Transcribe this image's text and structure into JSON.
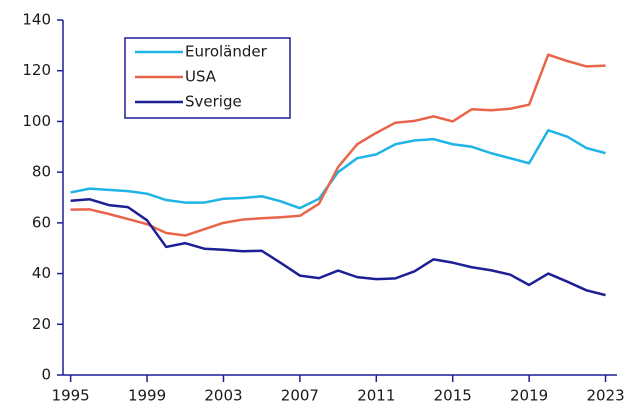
{
  "chart_data": {
    "type": "line",
    "x": [
      1995,
      1996,
      1997,
      1998,
      1999,
      2000,
      2001,
      2002,
      2003,
      2004,
      2005,
      2006,
      2007,
      2008,
      2009,
      2010,
      2011,
      2012,
      2013,
      2014,
      2015,
      2016,
      2017,
      2018,
      2019,
      2020,
      2021,
      2022,
      2023
    ],
    "series": [
      {
        "name": "Euroländer",
        "color": "#1eb4e6",
        "values": [
          72,
          73.5,
          73,
          72.5,
          71.5,
          69,
          68,
          68,
          69.5,
          69.8,
          70.5,
          68.5,
          65.8,
          69.5,
          80,
          85.5,
          87,
          91,
          92.5,
          93,
          91,
          90,
          87.5,
          85.5,
          83.5,
          96.5,
          94,
          89.5,
          87.5
        ]
      },
      {
        "name": "USA",
        "color": "#e8644a",
        "values": [
          65.2,
          65.3,
          63.5,
          61.5,
          59.5,
          56,
          55,
          57.5,
          60,
          61.3,
          61.8,
          62.2,
          62.8,
          67.5,
          82,
          91,
          95.5,
          99.5,
          100.2,
          102,
          100,
          104.8,
          104.4,
          105,
          106.6,
          126.3,
          123.8,
          121.7,
          122
        ]
      },
      {
        "name": "Sverige",
        "color": "#1e1e96",
        "values": [
          68.7,
          69.3,
          67,
          66.2,
          61,
          50.5,
          52,
          49.8,
          49.4,
          48.8,
          49,
          44.2,
          39.2,
          38.2,
          41.2,
          38.6,
          37.8,
          38.1,
          40.9,
          45.6,
          44.3,
          42.5,
          41.3,
          39.6,
          35.5,
          40,
          36.8,
          33.4,
          31.5
        ]
      }
    ],
    "xlim": [
      1994.6,
      2023.6
    ],
    "xticks": [
      1995,
      1999,
      2003,
      2007,
      2011,
      2015,
      2019,
      2023
    ],
    "ylim": [
      0,
      140
    ],
    "yticks": [
      0,
      20,
      40,
      60,
      80,
      100,
      120,
      140
    ],
    "legend": "upper left"
  }
}
